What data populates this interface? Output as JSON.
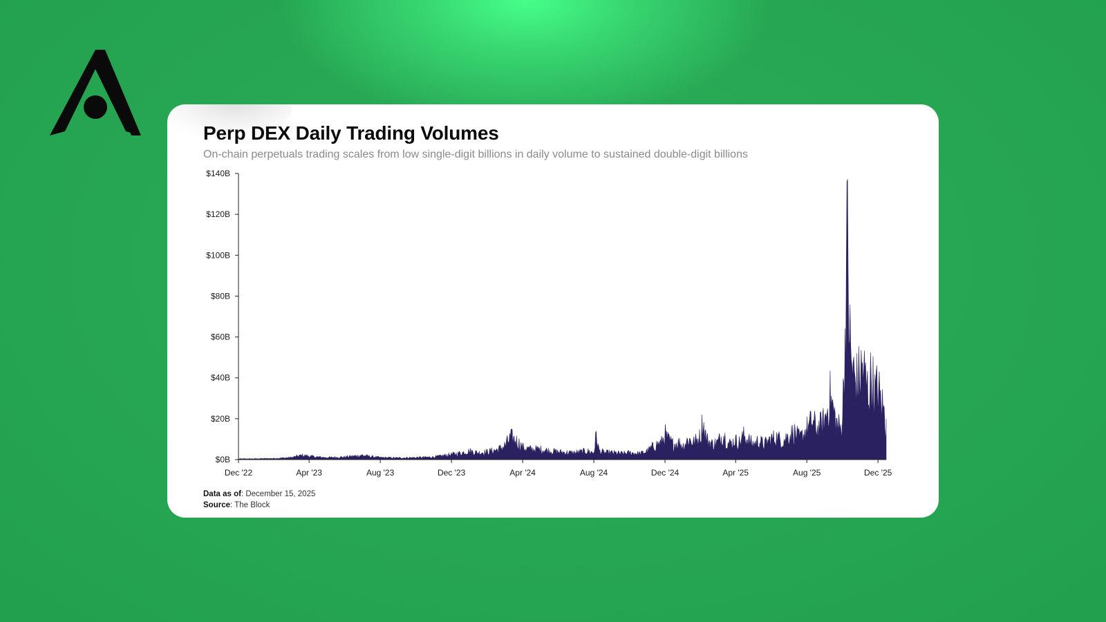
{
  "colors": {
    "accent": "#2a2160",
    "background": "#26a552",
    "card": "#ffffff"
  },
  "logo": {
    "icon": "brand-a-icon"
  },
  "chart_data": {
    "type": "area",
    "title": "Perp DEX Daily Trading Volumes",
    "subtitle": "On-chain perpetuals trading scales from low single-digit billions in daily volume to sustained double-digit billions",
    "xlabel": "",
    "ylabel": "",
    "y_unit": "billions USD",
    "ylim": [
      0,
      140
    ],
    "y_ticks": [
      0,
      20,
      40,
      60,
      80,
      100,
      120,
      140
    ],
    "y_tick_labels": [
      "$0B",
      "$20B",
      "$40B",
      "$60B",
      "$80B",
      "$100B",
      "$120B",
      "$140B"
    ],
    "x_range": [
      "2022-12-01",
      "2025-12-15"
    ],
    "x_ticks": [
      "2022-12-01",
      "2023-04-01",
      "2023-08-01",
      "2023-12-01",
      "2024-04-01",
      "2024-08-01",
      "2024-12-01",
      "2025-04-01",
      "2025-08-01",
      "2025-12-01"
    ],
    "x_tick_labels": [
      "Dec '22",
      "Apr '23",
      "Aug '23",
      "Dec '23",
      "Apr '24",
      "Aug '24",
      "Dec '24",
      "Apr '25",
      "Aug '25",
      "Dec '25"
    ],
    "grid": false,
    "legend": "none",
    "series": [
      {
        "x": [
          "2022-12-01",
          "2023-01-01",
          "2023-02-01",
          "2023-03-01",
          "2023-03-20",
          "2023-04-01",
          "2023-04-15",
          "2023-05-01",
          "2023-06-01",
          "2023-07-01",
          "2023-07-15",
          "2023-08-01",
          "2023-09-01",
          "2023-10-01",
          "2023-11-01",
          "2023-12-01",
          "2023-12-20",
          "2024-01-01",
          "2024-01-15",
          "2024-02-01",
          "2024-02-20",
          "2024-03-01",
          "2024-03-12",
          "2024-03-25",
          "2024-04-01",
          "2024-04-15",
          "2024-05-01",
          "2024-05-20",
          "2024-06-01",
          "2024-06-20",
          "2024-07-01",
          "2024-07-20",
          "2024-08-01",
          "2024-08-05",
          "2024-08-10",
          "2024-08-20",
          "2024-09-01",
          "2024-09-20",
          "2024-10-01",
          "2024-10-20",
          "2024-11-01",
          "2024-11-12",
          "2024-11-25",
          "2024-12-01",
          "2024-12-05",
          "2024-12-15",
          "2024-12-25",
          "2025-01-01",
          "2025-01-10",
          "2025-01-20",
          "2025-02-01",
          "2025-02-03",
          "2025-02-10",
          "2025-02-20",
          "2025-03-01",
          "2025-03-11",
          "2025-03-20",
          "2025-04-01",
          "2025-04-07",
          "2025-04-15",
          "2025-05-01",
          "2025-05-10",
          "2025-05-20",
          "2025-06-01",
          "2025-06-10",
          "2025-06-20",
          "2025-07-01",
          "2025-07-10",
          "2025-07-20",
          "2025-08-01",
          "2025-08-10",
          "2025-08-20",
          "2025-09-01",
          "2025-09-10",
          "2025-09-20",
          "2025-09-28",
          "2025-10-01",
          "2025-10-05",
          "2025-10-08",
          "2025-10-10",
          "2025-10-12",
          "2025-10-15",
          "2025-10-20",
          "2025-10-25",
          "2025-11-01",
          "2025-11-05",
          "2025-11-10",
          "2025-11-15",
          "2025-11-20",
          "2025-11-25",
          "2025-12-01",
          "2025-12-05",
          "2025-12-10",
          "2025-12-15"
        ],
        "y": [
          0.4,
          0.5,
          0.7,
          1.2,
          2.5,
          2,
          1.5,
          1.2,
          1.5,
          2.5,
          1.8,
          1.2,
          1,
          1.2,
          1.5,
          3,
          4,
          5,
          4,
          4.5,
          6,
          8,
          13,
          10,
          7,
          6,
          6,
          5,
          4.5,
          4,
          4,
          5,
          4,
          14,
          5,
          4,
          4,
          3.5,
          4,
          3.5,
          5,
          8,
          10,
          15,
          12,
          9,
          10,
          8,
          12,
          10,
          14,
          23,
          12,
          9,
          10,
          15,
          9,
          11,
          10,
          14,
          9,
          11,
          9,
          12,
          13,
          11,
          14,
          16,
          12,
          18,
          22,
          18,
          23,
          37,
          22,
          18,
          25,
          62,
          115,
          128,
          90,
          60,
          50,
          45,
          50,
          55,
          45,
          40,
          50,
          38,
          42,
          35,
          30,
          20
        ]
      }
    ]
  },
  "footer": {
    "data_as_of_label": "Data as of",
    "data_as_of_value": ": December 15, 2025",
    "source_label": "Source",
    "source_value": ": The Block"
  }
}
